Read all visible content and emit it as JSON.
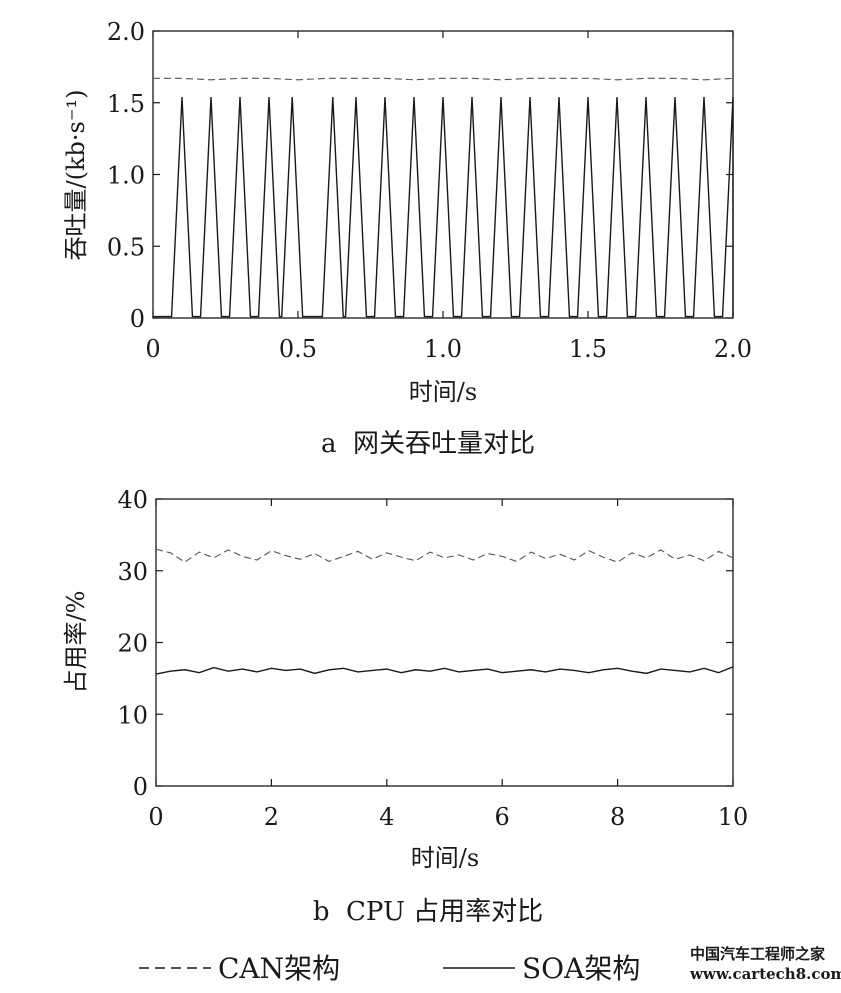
{
  "chart_data": [
    {
      "type": "line",
      "caption": "a  网关吞吐量对比",
      "xlabel": "时间/s",
      "ylabel": "吞吐量/(kb·s⁻¹)",
      "xlim": [
        0,
        2.0
      ],
      "ylim": [
        0,
        2.0
      ],
      "x_ticks": [
        "0",
        "0.5",
        "1.0",
        "1.5",
        "2.0"
      ],
      "y_ticks": [
        "0",
        "0.5",
        "1.0",
        "1.5",
        "2.0"
      ],
      "grid": false,
      "series": [
        {
          "name": "CAN架构",
          "style": "dashed",
          "x": [
            0,
            0.1,
            0.2,
            0.3,
            0.4,
            0.5,
            0.6,
            0.7,
            0.8,
            0.9,
            1.0,
            1.1,
            1.2,
            1.3,
            1.4,
            1.5,
            1.6,
            1.7,
            1.8,
            1.9,
            2.0
          ],
          "y": [
            1.67,
            1.67,
            1.66,
            1.67,
            1.67,
            1.66,
            1.67,
            1.67,
            1.67,
            1.66,
            1.67,
            1.67,
            1.66,
            1.67,
            1.67,
            1.67,
            1.66,
            1.67,
            1.67,
            1.66,
            1.67
          ]
        },
        {
          "name": "SOA架构",
          "style": "solid",
          "baseline": 0.01,
          "peak": 1.54,
          "peak_x": [
            0.1,
            0.2,
            0.3,
            0.4,
            0.48,
            0.62,
            0.7,
            0.8,
            0.9,
            1.0,
            1.1,
            1.2,
            1.3,
            1.4,
            1.5,
            1.6,
            1.7,
            1.8,
            1.9,
            2.0
          ]
        }
      ]
    },
    {
      "type": "line",
      "caption": "b  CPU 占用率对比",
      "xlabel": "时间/s",
      "ylabel": "占用率/%",
      "xlim": [
        0,
        10
      ],
      "ylim": [
        0,
        40
      ],
      "x_ticks": [
        "0",
        "2",
        "4",
        "6",
        "8",
        "10"
      ],
      "y_ticks": [
        "0",
        "10",
        "20",
        "30",
        "40"
      ],
      "grid": false,
      "series": [
        {
          "name": "CAN架构",
          "style": "dashed",
          "x": [
            0,
            0.25,
            0.5,
            0.75,
            1.0,
            1.25,
            1.5,
            1.75,
            2.0,
            2.25,
            2.5,
            2.75,
            3.0,
            3.25,
            3.5,
            3.75,
            4.0,
            4.25,
            4.5,
            4.75,
            5.0,
            5.25,
            5.5,
            5.75,
            6.0,
            6.25,
            6.5,
            6.75,
            7.0,
            7.25,
            7.5,
            7.75,
            8.0,
            8.25,
            8.5,
            8.75,
            9.0,
            9.25,
            9.5,
            9.75,
            10.0
          ],
          "y": [
            33.0,
            32.5,
            31.2,
            32.6,
            31.8,
            32.9,
            32.0,
            31.5,
            32.8,
            32.1,
            31.6,
            32.4,
            31.3,
            32.0,
            32.7,
            31.6,
            32.5,
            31.9,
            31.4,
            32.6,
            31.8,
            32.2,
            31.5,
            32.4,
            32.0,
            31.3,
            32.6,
            31.7,
            32.3,
            31.5,
            32.8,
            31.9,
            31.2,
            32.5,
            31.8,
            32.9,
            31.6,
            32.2,
            31.4,
            32.7,
            31.8
          ]
        },
        {
          "name": "SOA架构",
          "style": "solid",
          "x": [
            0,
            0.25,
            0.5,
            0.75,
            1.0,
            1.25,
            1.5,
            1.75,
            2.0,
            2.25,
            2.5,
            2.75,
            3.0,
            3.25,
            3.5,
            3.75,
            4.0,
            4.25,
            4.5,
            4.75,
            5.0,
            5.25,
            5.5,
            5.75,
            6.0,
            6.25,
            6.5,
            6.75,
            7.0,
            7.25,
            7.5,
            7.75,
            8.0,
            8.25,
            8.5,
            8.75,
            9.0,
            9.25,
            9.5,
            9.75,
            10.0
          ],
          "y": [
            15.6,
            16.0,
            16.2,
            15.8,
            16.5,
            16.0,
            16.3,
            15.9,
            16.4,
            16.1,
            16.3,
            15.7,
            16.2,
            16.4,
            15.9,
            16.1,
            16.3,
            15.8,
            16.2,
            16.0,
            16.4,
            15.9,
            16.1,
            16.3,
            15.8,
            16.0,
            16.2,
            15.9,
            16.3,
            16.1,
            15.8,
            16.2,
            16.4,
            16.0,
            15.7,
            16.3,
            16.1,
            15.9,
            16.4,
            15.8,
            16.6
          ]
        }
      ]
    }
  ],
  "legend": {
    "items": [
      {
        "label": "CAN架构",
        "style": "dashed"
      },
      {
        "label": "SOA架构",
        "style": "solid"
      }
    ]
  },
  "watermark": {
    "line1": "中国汽车工程师之家",
    "line2": "www.cartech8.com"
  }
}
